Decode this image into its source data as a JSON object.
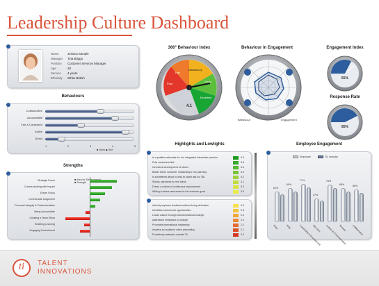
{
  "header": {
    "title": "Leadership Culture Dashboard"
  },
  "profile": {
    "fields": [
      {
        "label": "Name",
        "value": "Jessica Sample"
      },
      {
        "label": "Manager",
        "value": "Tina Briggs"
      },
      {
        "label": "Position",
        "value": "Customer Services Manager"
      },
      {
        "label": "Age",
        "value": "28"
      },
      {
        "label": "Service",
        "value": "4 years"
      },
      {
        "label": "Ethnicity",
        "value": "White British"
      }
    ]
  },
  "behaviours": {
    "title": "Behaviours",
    "items": [
      {
        "label": "Collaborative",
        "value": 0.62
      },
      {
        "label": "Accountable",
        "value": 0.78
      },
      {
        "label": "Fair & Consistent",
        "value": 0.4
      },
      {
        "label": "Active",
        "value": 0.9
      },
      {
        "label": "Direct",
        "value": 0.18
      }
    ],
    "axis": [
      "1",
      "2",
      "3",
      "4",
      "5"
    ],
    "legend": "■ Norm  ◆ Self"
  },
  "strengths": {
    "title": "Strengths",
    "legend": [
      "■ Area for Development",
      "■ Strength"
    ],
    "items": [
      {
        "label": "Strategic Focus",
        "value": 0.55
      },
      {
        "label": "Communicating with Impact",
        "value": 0.45
      },
      {
        "label": "Driven Focus",
        "value": 0.32
      },
      {
        "label": "Commercial Judgement",
        "value": 0.22
      },
      {
        "label": "Personal Integrity & Professionalism",
        "value": 0.12
      },
      {
        "label": "Being Accountable",
        "value": -0.08
      },
      {
        "label": "Creating a Team Ethos",
        "value": -0.5
      },
      {
        "label": "Enabling Learning",
        "value": -0.12
      },
      {
        "label": "Engaging Commitment",
        "value": -0.2
      }
    ]
  },
  "behaviour_index": {
    "title": "360° Behaviour Index",
    "segments": [
      "Satisfactory",
      "Good",
      "Excellent",
      "Poor",
      "Fair"
    ],
    "score": "4.1"
  },
  "engagement_radar": {
    "title": "Behaviour in Engagement",
    "labels": [
      "Behaviour",
      "Engagement"
    ]
  },
  "engagement_index": {
    "title": "Engagement Index",
    "value": "65%",
    "level": 0.65
  },
  "response_rate": {
    "title": "Response Rate",
    "value": "85%",
    "level": 0.85
  },
  "highlights": {
    "title": "Highlights and Lowlights",
    "top": [
      {
        "text": "Is a positive advocate for our integrated interactive passion",
        "score": "4.6"
      },
      {
        "text": "Puts customers first",
        "score": "4.5"
      },
      {
        "text": "Oversees development of others",
        "score": "4.4"
      },
      {
        "text": "Builds future customer relationships into planning",
        "score": "4.3"
      },
      {
        "text": "Is sometimes about to lead to stand ask for TBL",
        "score": "4.2"
      },
      {
        "text": "Shows openness to new ideas",
        "score": "4.1"
      },
      {
        "text": "Drives a culture of continuous improvement",
        "score": "4.0"
      },
      {
        "text": "Willing to share resources for the common good",
        "score": "3.9"
      }
    ],
    "bottom": [
      {
        "text": "Actively explores feedback without being defensive",
        "score": "2.6"
      },
      {
        "text": "Identifies commercial opportunities",
        "score": "2.5"
      },
      {
        "text": "Leads culture through transformational change",
        "score": "2.4"
      },
      {
        "text": "Addresses resistance to change",
        "score": "2.3"
      },
      {
        "text": "Promotes international leadership",
        "score": "2.2"
      },
      {
        "text": "Inspires an audience when presenting",
        "score": "2.1"
      },
      {
        "text": "Proactively networks outside TIL",
        "score": "2.0"
      }
    ]
  },
  "employee_engagement": {
    "title": "Employee Engagement",
    "legend": [
      "Employee",
      "TIL Industry"
    ],
    "categories": [
      "Pride",
      "Role",
      "Leadership & Development",
      "Direction",
      "Culture & Communication",
      "Reward",
      "Collaboration"
    ],
    "values": [
      {
        "label": "61%",
        "value": 61
      },
      {
        "label": "69%",
        "value": 69
      },
      {
        "label": "77%",
        "value": 77
      },
      {
        "label": "47%",
        "value": 47
      },
      {
        "label": "75%",
        "value": 75
      },
      {
        "label": "68%",
        "value": 68
      },
      {
        "label": "65%",
        "value": 65
      }
    ]
  },
  "footer": {
    "logo_mark": "ti",
    "brand_line1": "TALENT",
    "brand_line2": "INNOVATIONS",
    "accent": "#d9543b"
  }
}
